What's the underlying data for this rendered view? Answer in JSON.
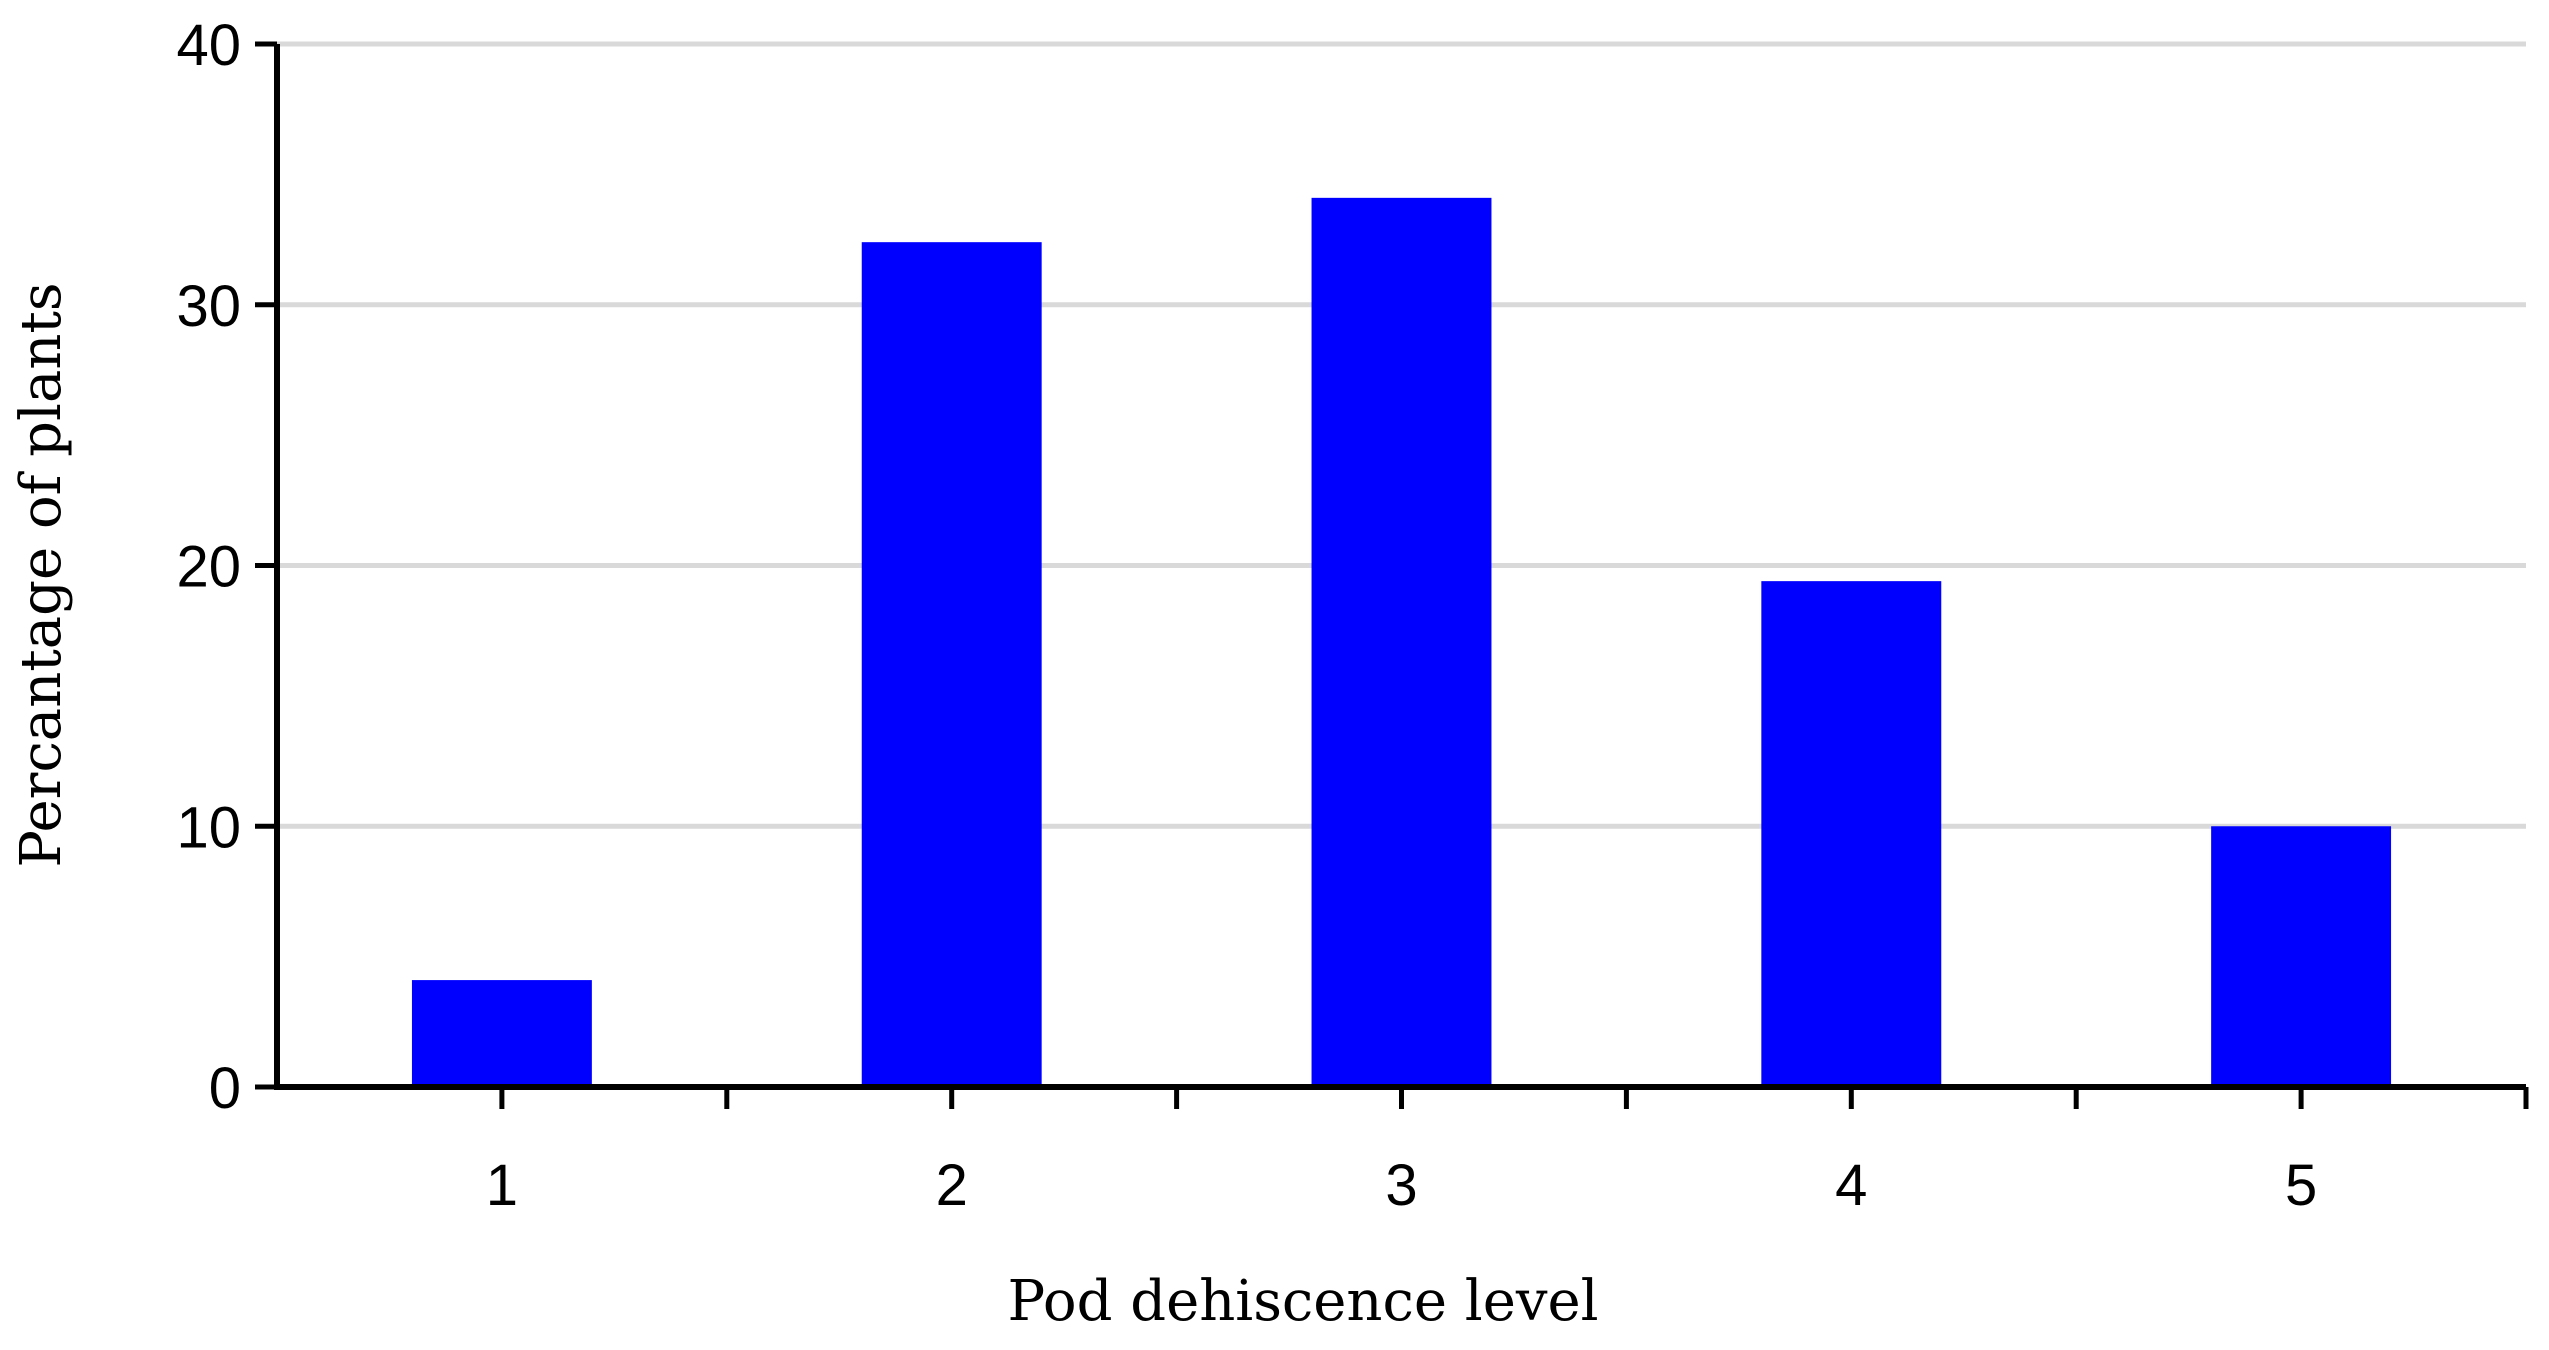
{
  "chart_data": {
    "type": "bar",
    "categories": [
      "1",
      "2",
      "3",
      "4",
      "5"
    ],
    "values": [
      4.1,
      32.4,
      34.1,
      19.4,
      10.0
    ],
    "title": "",
    "xlabel": "Pod dehiscence level",
    "ylabel": "Percantage of plants",
    "ylim": [
      0,
      40
    ],
    "yticks": [
      0,
      10,
      20,
      30,
      40
    ],
    "grid": true,
    "legend": "none",
    "colors": {
      "bar": "#0000ff",
      "grid": "#d9d9d9",
      "axis": "#000000",
      "background": "#ffffff"
    }
  }
}
